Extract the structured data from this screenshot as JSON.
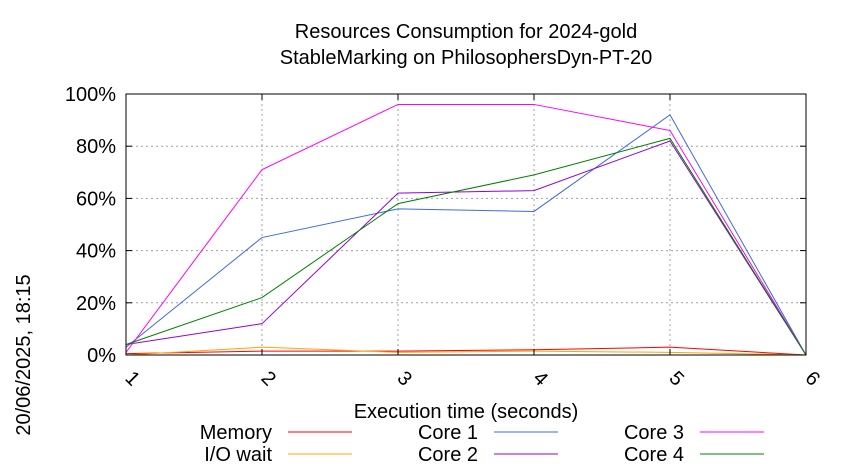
{
  "chart_data": {
    "type": "line",
    "title": "Resources Consumption for 2024-gold",
    "subtitle": "StableMarking on PhilosophersDyn-PT-20",
    "xlabel": "Execution time (seconds)",
    "ylabel": "",
    "side_label": "20/06/2025, 18:15",
    "x": [
      1,
      2,
      3,
      4,
      5,
      6
    ],
    "x_tick_labels": [
      "1",
      "2",
      "3",
      "4",
      "5",
      "6"
    ],
    "xlim": [
      1,
      6
    ],
    "ylim": [
      0,
      100
    ],
    "y_ticks": [
      0,
      20,
      40,
      60,
      80,
      100
    ],
    "y_tick_labels": [
      "0%",
      "20%",
      "40%",
      "60%",
      "80%",
      "100%"
    ],
    "grid": true,
    "legend_position": "bottom",
    "series": [
      {
        "name": "Memory",
        "color": "#ff0000",
        "values": [
          0.5,
          1.5,
          1.5,
          2,
          3,
          0
        ]
      },
      {
        "name": "I/O wait",
        "color": "#ffa500",
        "values": [
          0,
          3,
          1,
          1.5,
          1,
          0
        ]
      },
      {
        "name": "Core 1",
        "color": "#4169e1",
        "values": [
          3,
          45,
          56,
          55,
          92,
          0
        ]
      },
      {
        "name": "Core 2",
        "color": "#9400d3",
        "values": [
          4,
          12,
          62,
          63,
          82,
          0
        ]
      },
      {
        "name": "Core 3",
        "color": "#ff00ff",
        "values": [
          1,
          71,
          96,
          96,
          86,
          0
        ]
      },
      {
        "name": "Core 4",
        "color": "#008000",
        "values": [
          4,
          22,
          58,
          69,
          83,
          0
        ]
      }
    ]
  }
}
